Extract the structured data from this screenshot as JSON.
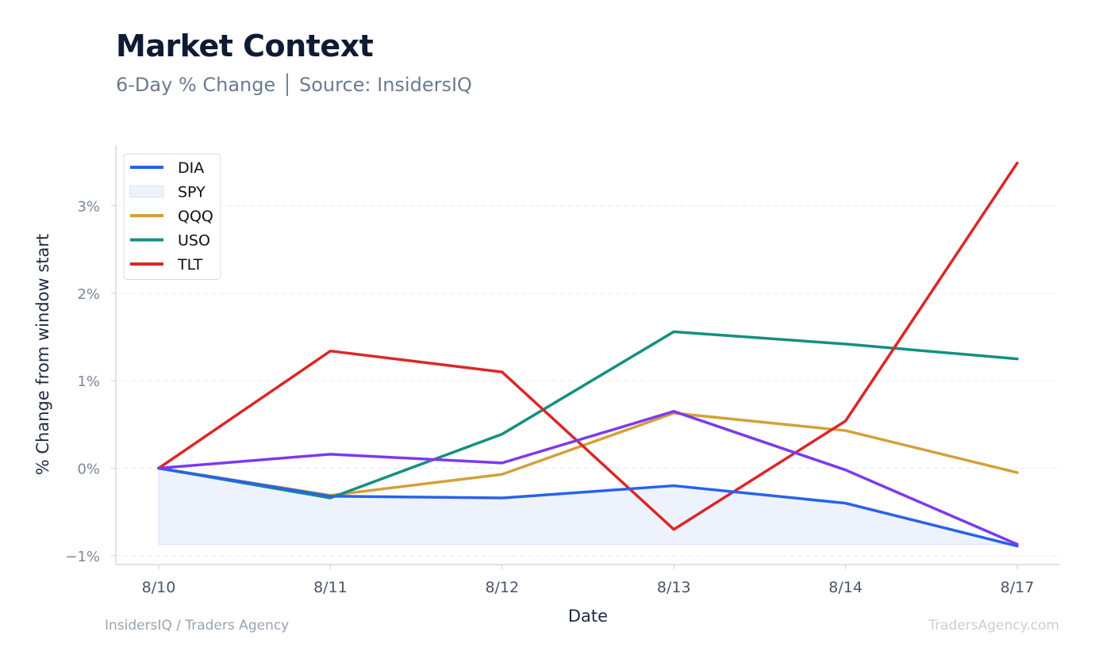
{
  "header": {
    "title": "Market Context",
    "subtitle": "6-Day % Change │ Source: InsidersIQ"
  },
  "footer": {
    "left": "InsidersIQ / Traders Agency",
    "right": "TradersAgency.com"
  },
  "chart_data": {
    "type": "line",
    "xlabel": "Date",
    "ylabel": "% Change from window start",
    "categories": [
      "8/10",
      "8/11",
      "8/12",
      "8/13",
      "8/14",
      "8/17"
    ],
    "y_ticks": [
      -1,
      0,
      1,
      2,
      3
    ],
    "y_tick_labels": [
      "−1%",
      "0%",
      "1%",
      "2%",
      "3%"
    ],
    "ylim": [
      -1.1,
      3.7
    ],
    "grid": true,
    "legend_position": "top-left",
    "series": [
      {
        "name": "DIA",
        "style": "line",
        "color": "#2563eb",
        "values": [
          0.0,
          -0.32,
          -0.34,
          -0.2,
          -0.4,
          -0.89
        ]
      },
      {
        "name": "SPY",
        "style": "area",
        "color": "#dbe4fb",
        "values": [
          0.0,
          -0.32,
          -0.34,
          -0.2,
          -0.4,
          -0.88
        ],
        "area_floor": -0.87
      },
      {
        "name": "QQQ",
        "style": "line",
        "color": "#d4a03a",
        "values": [
          0.0,
          -0.31,
          -0.07,
          0.63,
          0.43,
          -0.05
        ]
      },
      {
        "name": "USO",
        "style": "line",
        "color": "#14907f",
        "values": [
          0.0,
          -0.34,
          0.39,
          1.56,
          1.42,
          1.25
        ]
      },
      {
        "name": "TLT",
        "style": "line",
        "color": "#dc2626",
        "values": [
          0.0,
          1.34,
          1.1,
          -0.7,
          0.54,
          3.49
        ]
      },
      {
        "name": "",
        "style": "line",
        "color": "#7c3aed",
        "values": [
          0.0,
          0.16,
          0.06,
          0.65,
          -0.02,
          -0.87
        ]
      }
    ]
  }
}
